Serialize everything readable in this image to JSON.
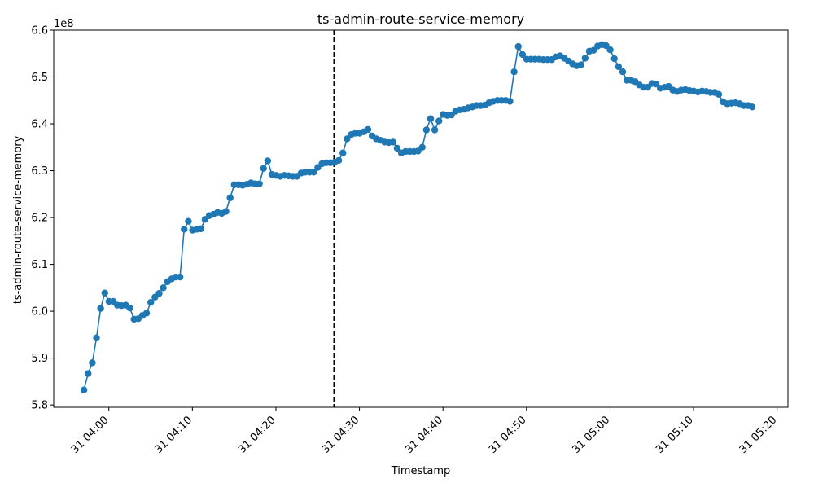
{
  "chart_data": {
    "type": "line",
    "title": "ts-admin-route-service-memory",
    "xlabel": "Timestamp",
    "ylabel": "ts-admin-route-service-memory",
    "y_offset_label": "1e8",
    "y_scale_factor": 100000000,
    "xlim": [
      "03:53:24",
      "05:21:18"
    ],
    "ylim": [
      579500000,
      660000000
    ],
    "x_ticks": [
      {
        "time": "04:00",
        "label": "31 04:00"
      },
      {
        "time": "04:10",
        "label": "31 04:10"
      },
      {
        "time": "04:20",
        "label": "31 04:20"
      },
      {
        "time": "04:30",
        "label": "31 04:30"
      },
      {
        "time": "04:40",
        "label": "31 04:40"
      },
      {
        "time": "04:50",
        "label": "31 04:50"
      },
      {
        "time": "05:00",
        "label": "31 05:00"
      },
      {
        "time": "05:10",
        "label": "31 05:10"
      },
      {
        "time": "05:20",
        "label": "31 05:20"
      }
    ],
    "y_ticks": [
      {
        "value": 580000000,
        "label": "5.8"
      },
      {
        "value": 590000000,
        "label": "5.9"
      },
      {
        "value": 600000000,
        "label": "6.0"
      },
      {
        "value": 610000000,
        "label": "6.1"
      },
      {
        "value": 620000000,
        "label": "6.2"
      },
      {
        "value": 630000000,
        "label": "6.3"
      },
      {
        "value": 640000000,
        "label": "6.4"
      },
      {
        "value": 650000000,
        "label": "6.5"
      },
      {
        "value": 660000000,
        "label": "6.6"
      }
    ],
    "vertical_line_time": "04:26:57",
    "grid": false,
    "series": [
      {
        "color": "#1f77b4",
        "points": [
          [
            "03:57:01",
            583200000
          ],
          [
            "03:57:31",
            586700000
          ],
          [
            "03:58:01",
            589000000
          ],
          [
            "03:58:31",
            594300000
          ],
          [
            "03:59:01",
            600600000
          ],
          [
            "03:59:31",
            603900000
          ],
          [
            "04:00:01",
            602100000
          ],
          [
            "04:00:31",
            602100000
          ],
          [
            "04:01:01",
            601300000
          ],
          [
            "04:01:31",
            601200000
          ],
          [
            "04:02:01",
            601300000
          ],
          [
            "04:02:31",
            600700000
          ],
          [
            "04:03:01",
            598300000
          ],
          [
            "04:03:31",
            598400000
          ],
          [
            "04:04:01",
            599100000
          ],
          [
            "04:04:31",
            599600000
          ],
          [
            "04:05:01",
            601900000
          ],
          [
            "04:05:31",
            603000000
          ],
          [
            "04:06:01",
            603800000
          ],
          [
            "04:06:31",
            605000000
          ],
          [
            "04:07:01",
            606300000
          ],
          [
            "04:07:31",
            606900000
          ],
          [
            "04:08:01",
            607300000
          ],
          [
            "04:08:31",
            607300000
          ],
          [
            "04:09:01",
            617500000
          ],
          [
            "04:09:31",
            619200000
          ],
          [
            "04:10:01",
            617300000
          ],
          [
            "04:10:31",
            617500000
          ],
          [
            "04:11:01",
            617600000
          ],
          [
            "04:11:31",
            619600000
          ],
          [
            "04:12:01",
            620400000
          ],
          [
            "04:12:31",
            620700000
          ],
          [
            "04:13:01",
            621100000
          ],
          [
            "04:13:31",
            620900000
          ],
          [
            "04:14:01",
            621300000
          ],
          [
            "04:14:31",
            624200000
          ],
          [
            "04:15:01",
            627000000
          ],
          [
            "04:15:31",
            627000000
          ],
          [
            "04:16:01",
            626900000
          ],
          [
            "04:16:31",
            627100000
          ],
          [
            "04:17:01",
            627400000
          ],
          [
            "04:17:31",
            627200000
          ],
          [
            "04:18:01",
            627200000
          ],
          [
            "04:18:31",
            630500000
          ],
          [
            "04:19:01",
            632100000
          ],
          [
            "04:19:31",
            629200000
          ],
          [
            "04:20:01",
            629000000
          ],
          [
            "04:20:31",
            628800000
          ],
          [
            "04:21:01",
            629000000
          ],
          [
            "04:21:31",
            628900000
          ],
          [
            "04:22:01",
            628800000
          ],
          [
            "04:22:31",
            628800000
          ],
          [
            "04:23:01",
            629500000
          ],
          [
            "04:23:31",
            629700000
          ],
          [
            "04:24:01",
            629700000
          ],
          [
            "04:24:31",
            629700000
          ],
          [
            "04:25:01",
            630700000
          ],
          [
            "04:25:31",
            631500000
          ],
          [
            "04:26:01",
            631700000
          ],
          [
            "04:26:31",
            631700000
          ],
          [
            "04:27:01",
            631800000
          ],
          [
            "04:27:31",
            632200000
          ],
          [
            "04:28:01",
            633800000
          ],
          [
            "04:28:31",
            636800000
          ],
          [
            "04:29:01",
            637700000
          ],
          [
            "04:29:31",
            638000000
          ],
          [
            "04:30:01",
            638000000
          ],
          [
            "04:30:31",
            638300000
          ],
          [
            "04:31:01",
            638800000
          ],
          [
            "04:31:31",
            637400000
          ],
          [
            "04:32:01",
            636800000
          ],
          [
            "04:32:31",
            636500000
          ],
          [
            "04:33:01",
            636100000
          ],
          [
            "04:33:31",
            636000000
          ],
          [
            "04:34:01",
            636100000
          ],
          [
            "04:34:31",
            634800000
          ],
          [
            "04:35:01",
            633800000
          ],
          [
            "04:35:31",
            634100000
          ],
          [
            "04:36:01",
            634100000
          ],
          [
            "04:36:31",
            634100000
          ],
          [
            "04:37:01",
            634200000
          ],
          [
            "04:37:31",
            635000000
          ],
          [
            "04:38:01",
            638700000
          ],
          [
            "04:38:31",
            641100000
          ],
          [
            "04:39:01",
            638700000
          ],
          [
            "04:39:31",
            640600000
          ],
          [
            "04:40:01",
            642000000
          ],
          [
            "04:40:31",
            641800000
          ],
          [
            "04:41:01",
            641900000
          ],
          [
            "04:41:31",
            642700000
          ],
          [
            "04:42:01",
            643000000
          ],
          [
            "04:42:31",
            643100000
          ],
          [
            "04:43:01",
            643400000
          ],
          [
            "04:43:31",
            643600000
          ],
          [
            "04:44:01",
            643900000
          ],
          [
            "04:44:31",
            643900000
          ],
          [
            "04:45:01",
            644000000
          ],
          [
            "04:45:31",
            644500000
          ],
          [
            "04:46:01",
            644800000
          ],
          [
            "04:46:31",
            645000000
          ],
          [
            "04:47:01",
            645000000
          ],
          [
            "04:47:31",
            645000000
          ],
          [
            "04:48:01",
            644800000
          ],
          [
            "04:48:31",
            651100000
          ],
          [
            "04:49:01",
            656500000
          ],
          [
            "04:49:31",
            654800000
          ],
          [
            "04:50:01",
            653800000
          ],
          [
            "04:50:31",
            653800000
          ],
          [
            "04:51:01",
            653800000
          ],
          [
            "04:51:31",
            653800000
          ],
          [
            "04:52:01",
            653700000
          ],
          [
            "04:52:31",
            653700000
          ],
          [
            "04:53:01",
            653700000
          ],
          [
            "04:53:31",
            654300000
          ],
          [
            "04:54:01",
            654500000
          ],
          [
            "04:54:31",
            654000000
          ],
          [
            "04:55:01",
            653400000
          ],
          [
            "04:55:31",
            652800000
          ],
          [
            "04:56:01",
            652400000
          ],
          [
            "04:56:31",
            652600000
          ],
          [
            "04:57:01",
            654000000
          ],
          [
            "04:57:31",
            655500000
          ],
          [
            "04:58:01",
            655700000
          ],
          [
            "04:58:31",
            656600000
          ],
          [
            "04:59:01",
            656900000
          ],
          [
            "04:59:31",
            656700000
          ],
          [
            "05:00:01",
            655800000
          ],
          [
            "05:00:31",
            653900000
          ],
          [
            "05:01:01",
            652200000
          ],
          [
            "05:01:31",
            651100000
          ],
          [
            "05:02:01",
            649300000
          ],
          [
            "05:02:31",
            649300000
          ],
          [
            "05:03:01",
            649000000
          ],
          [
            "05:03:31",
            648300000
          ],
          [
            "05:04:01",
            647800000
          ],
          [
            "05:04:31",
            647800000
          ],
          [
            "05:05:01",
            648600000
          ],
          [
            "05:05:31",
            648500000
          ],
          [
            "05:06:01",
            647600000
          ],
          [
            "05:06:31",
            647800000
          ],
          [
            "05:07:01",
            648000000
          ],
          [
            "05:07:31",
            647200000
          ],
          [
            "05:08:01",
            646900000
          ],
          [
            "05:08:31",
            647200000
          ],
          [
            "05:09:01",
            647300000
          ],
          [
            "05:09:31",
            647100000
          ],
          [
            "05:10:01",
            647000000
          ],
          [
            "05:10:31",
            646800000
          ],
          [
            "05:11:01",
            647000000
          ],
          [
            "05:11:31",
            646900000
          ],
          [
            "05:12:01",
            646700000
          ],
          [
            "05:12:31",
            646700000
          ],
          [
            "05:13:01",
            646300000
          ],
          [
            "05:13:31",
            644700000
          ],
          [
            "05:14:01",
            644300000
          ],
          [
            "05:14:31",
            644400000
          ],
          [
            "05:15:01",
            644500000
          ],
          [
            "05:15:31",
            644300000
          ],
          [
            "05:16:01",
            643900000
          ],
          [
            "05:16:31",
            643900000
          ],
          [
            "05:17:01",
            643600000
          ]
        ]
      }
    ]
  }
}
